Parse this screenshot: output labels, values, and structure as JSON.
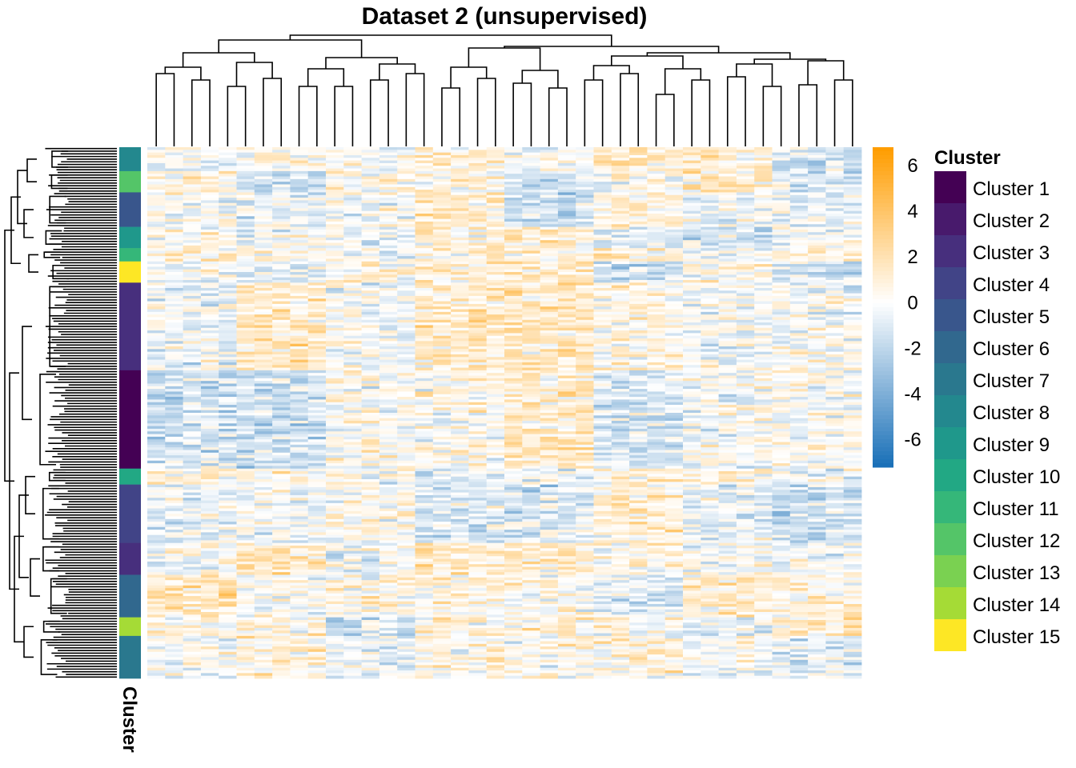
{
  "chart_data": {
    "type": "heatmap",
    "title": "Dataset 2 (unsupervised)",
    "n_rows": 200,
    "n_cols": 40,
    "values_note": "",
    "colorbar": {
      "ticks": [
        6,
        4,
        2,
        0,
        -2,
        -4,
        -6
      ],
      "tick_labels": [
        "6",
        "4",
        "2",
        "0",
        "-2",
        "-4",
        "-6"
      ],
      "range": [
        -7.2,
        6.8
      ],
      "colors": {
        "low": "#1a70b8",
        "mid": "#ffffff",
        "high": "#ff9d00"
      }
    },
    "row_annotation": {
      "name": "Cluster",
      "segments": [
        {
          "cluster": "Cluster 8",
          "rows": 9
        },
        {
          "cluster": "Cluster 12",
          "rows": 8
        },
        {
          "cluster": "Cluster 5",
          "rows": 13
        },
        {
          "cluster": "Cluster 9",
          "rows": 8
        },
        {
          "cluster": "Cluster 11",
          "rows": 5
        },
        {
          "cluster": "Cluster 15",
          "rows": 8
        },
        {
          "cluster": "Cluster 3",
          "rows": 33
        },
        {
          "cluster": "Cluster 1",
          "rows": 37
        },
        {
          "cluster": "Cluster 10",
          "rows": 6
        },
        {
          "cluster": "Cluster 4",
          "rows": 22
        },
        {
          "cluster": "Cluster 3",
          "rows": 12
        },
        {
          "cluster": "Cluster 6",
          "rows": 16
        },
        {
          "cluster": "Cluster 14",
          "rows": 7
        },
        {
          "cluster": "Cluster 7",
          "rows": 16
        }
      ]
    },
    "legend": {
      "title": "Cluster",
      "position": "right",
      "items": [
        {
          "label": "Cluster 1",
          "color": "#440154"
        },
        {
          "label": "Cluster 2",
          "color": "#481a6c"
        },
        {
          "label": "Cluster 3",
          "color": "#472f7d"
        },
        {
          "label": "Cluster 4",
          "color": "#414487"
        },
        {
          "label": "Cluster 5",
          "color": "#39568c"
        },
        {
          "label": "Cluster 6",
          "color": "#31688e"
        },
        {
          "label": "Cluster 7",
          "color": "#2a788e"
        },
        {
          "label": "Cluster 8",
          "color": "#23888e"
        },
        {
          "label": "Cluster 9",
          "color": "#1f988b"
        },
        {
          "label": "Cluster 10",
          "color": "#22a884"
        },
        {
          "label": "Cluster 11",
          "color": "#35b779"
        },
        {
          "label": "Cluster 12",
          "color": "#54c568"
        },
        {
          "label": "Cluster 13",
          "color": "#7ad151"
        },
        {
          "label": "Cluster 14",
          "color": "#a5db36"
        },
        {
          "label": "Cluster 15",
          "color": "#d2e21b"
        }
      ],
      "last_swatch_color": "#fde725"
    },
    "row_dendrogram": true,
    "column_dendrogram": true
  }
}
